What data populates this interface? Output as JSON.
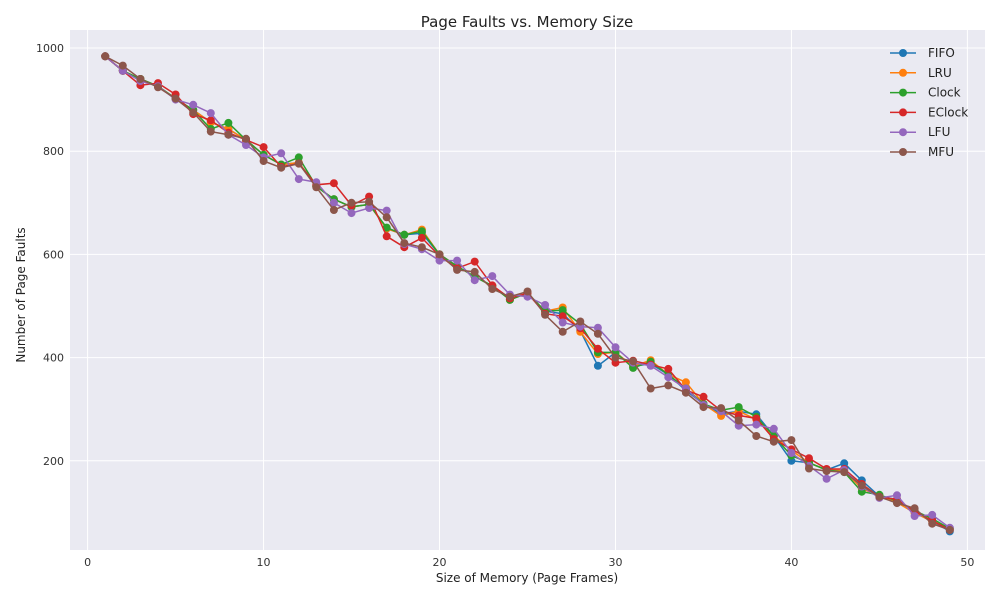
{
  "chart_data": {
    "type": "line",
    "title": "Page Faults vs. Memory Size",
    "xlabel": "Size of Memory (Page Frames)",
    "ylabel": "Number of Page Faults",
    "xlim": [
      -1,
      51
    ],
    "ylim": [
      27,
      1035
    ],
    "xticks": [
      0,
      10,
      20,
      30,
      40,
      50
    ],
    "yticks": [
      200,
      400,
      600,
      800,
      1000
    ],
    "grid": true,
    "legend_position": "top-right",
    "x": [
      1,
      2,
      3,
      4,
      5,
      6,
      7,
      8,
      9,
      10,
      11,
      12,
      13,
      14,
      15,
      16,
      17,
      18,
      19,
      20,
      21,
      22,
      23,
      24,
      25,
      26,
      27,
      28,
      29,
      30,
      31,
      32,
      33,
      34,
      35,
      36,
      37,
      38,
      39,
      40,
      41,
      42,
      43,
      44,
      45,
      46,
      47,
      48,
      49
    ],
    "series": [
      {
        "name": "FIFO",
        "color": "#1f77b4",
        "values": [
          984,
          956,
          940,
          926,
          902,
          880,
          856,
          843,
          822,
          793,
          774,
          778,
          732,
          707,
          692,
          697,
          650,
          638,
          641,
          600,
          577,
          557,
          539,
          512,
          525,
          490,
          485,
          452,
          384,
          410,
          383,
          388,
          367,
          336,
          310,
          291,
          296,
          290,
          248,
          200,
          196,
          182,
          195,
          162,
          131,
          125,
          100,
          83,
          63
        ]
      },
      {
        "name": "LRU",
        "color": "#ff7f0e",
        "values": [
          984,
          956,
          940,
          926,
          902,
          880,
          856,
          843,
          822,
          793,
          774,
          778,
          732,
          707,
          692,
          697,
          650,
          638,
          648,
          600,
          577,
          557,
          539,
          512,
          525,
          490,
          497,
          450,
          407,
          410,
          383,
          395,
          367,
          352,
          310,
          287,
          296,
          280,
          248,
          220,
          196,
          182,
          181,
          146,
          132,
          119,
          99,
          82,
          69
        ]
      },
      {
        "name": "Clock",
        "color": "#2ca02c",
        "values": [
          984,
          956,
          940,
          926,
          902,
          880,
          843,
          855,
          822,
          793,
          774,
          788,
          732,
          707,
          692,
          697,
          652,
          638,
          645,
          600,
          577,
          557,
          539,
          512,
          525,
          490,
          492,
          465,
          410,
          410,
          380,
          392,
          367,
          340,
          310,
          298,
          304,
          285,
          248,
          210,
          196,
          182,
          178,
          140,
          134,
          122,
          103,
          88,
          68
        ]
      },
      {
        "name": "EClock",
        "color": "#d62728",
        "values": [
          984,
          956,
          928,
          932,
          910,
          872,
          860,
          836,
          822,
          808,
          770,
          776,
          735,
          738,
          695,
          712,
          635,
          614,
          632,
          597,
          573,
          586,
          540,
          515,
          525,
          485,
          480,
          457,
          417,
          390,
          394,
          386,
          378,
          337,
          324,
          297,
          288,
          282,
          242,
          222,
          205,
          184,
          184,
          155,
          130,
          125,
          102,
          84,
          66
        ]
      },
      {
        "name": "LFU",
        "color": "#9467bd",
        "values": [
          984,
          956,
          936,
          926,
          900,
          890,
          874,
          832,
          812,
          788,
          796,
          746,
          740,
          700,
          680,
          690,
          685,
          620,
          610,
          588,
          588,
          550,
          558,
          522,
          518,
          502,
          468,
          460,
          458,
          420,
          390,
          384,
          362,
          340,
          308,
          296,
          268,
          270,
          262,
          215,
          190,
          165,
          182,
          150,
          128,
          133,
          93,
          95,
          70
        ]
      },
      {
        "name": "MFU",
        "color": "#8c564b",
        "values": [
          984,
          966,
          940,
          924,
          902,
          875,
          838,
          832,
          824,
          781,
          768,
          776,
          730,
          686,
          700,
          702,
          672,
          622,
          614,
          600,
          570,
          566,
          533,
          518,
          528,
          483,
          450,
          470,
          446,
          400,
          393,
          340,
          346,
          332,
          304,
          302,
          278,
          248,
          237,
          240,
          185,
          180,
          178,
          152,
          130,
          118,
          108,
          78,
          66
        ]
      }
    ]
  }
}
